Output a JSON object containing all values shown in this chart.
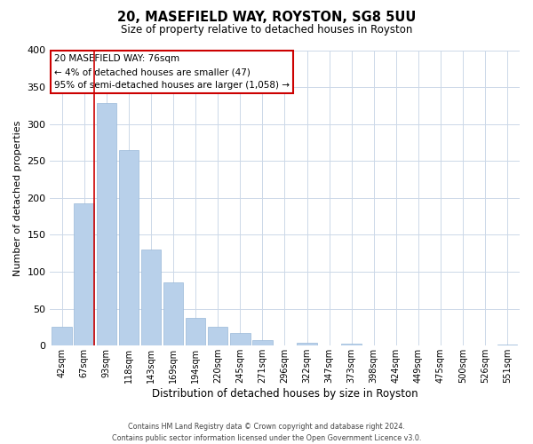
{
  "title": "20, MASEFIELD WAY, ROYSTON, SG8 5UU",
  "subtitle": "Size of property relative to detached houses in Royston",
  "xlabel": "Distribution of detached houses by size in Royston",
  "ylabel": "Number of detached properties",
  "bar_labels": [
    "42sqm",
    "67sqm",
    "93sqm",
    "118sqm",
    "143sqm",
    "169sqm",
    "194sqm",
    "220sqm",
    "245sqm",
    "271sqm",
    "296sqm",
    "322sqm",
    "347sqm",
    "373sqm",
    "398sqm",
    "424sqm",
    "449sqm",
    "475sqm",
    "500sqm",
    "526sqm",
    "551sqm"
  ],
  "bar_values": [
    25,
    193,
    328,
    265,
    130,
    86,
    38,
    25,
    17,
    8,
    0,
    4,
    0,
    3,
    0,
    0,
    0,
    0,
    0,
    0,
    2
  ],
  "bar_color": "#b8d0ea",
  "bar_edge_color": "#9ab8d8",
  "ylim": [
    0,
    400
  ],
  "yticks": [
    0,
    50,
    100,
    150,
    200,
    250,
    300,
    350,
    400
  ],
  "vline_color": "#cc0000",
  "annotation_title": "20 MASEFIELD WAY: 76sqm",
  "annotation_line1": "← 4% of detached houses are smaller (47)",
  "annotation_line2": "95% of semi-detached houses are larger (1,058) →",
  "annotation_box_color": "#ffffff",
  "annotation_box_edge": "#cc0000",
  "grid_color": "#ccd8e8",
  "bg_color": "#ffffff",
  "footer1": "Contains HM Land Registry data © Crown copyright and database right 2024.",
  "footer2": "Contains public sector information licensed under the Open Government Licence v3.0."
}
